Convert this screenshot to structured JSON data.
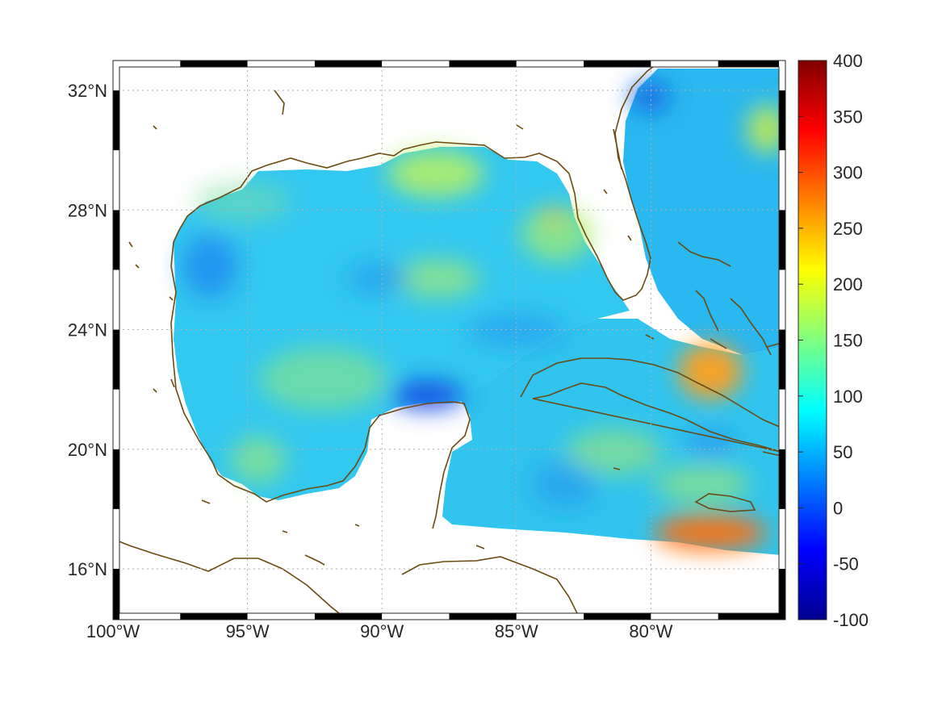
{
  "map": {
    "lon_range": [
      -100,
      -75
    ],
    "lat_range": [
      14.3,
      33
    ],
    "x_ticks": [
      {
        "lon": -100,
        "label": "100°W"
      },
      {
        "lon": -95,
        "label": "95°W"
      },
      {
        "lon": -90,
        "label": "90°W"
      },
      {
        "lon": -85,
        "label": "85°W"
      },
      {
        "lon": -80,
        "label": "80°W"
      }
    ],
    "y_ticks": [
      {
        "lat": 32,
        "label": "32°N"
      },
      {
        "lat": 28,
        "label": "28°N"
      },
      {
        "lat": 24,
        "label": "24°N"
      },
      {
        "lat": 20,
        "label": "20°N"
      },
      {
        "lat": 16,
        "label": "16°N"
      }
    ],
    "grid": "dotted",
    "frame": "black-white checkerboard",
    "coastline_color": "#6b4a12",
    "field_colormap": "jet"
  },
  "colorbar": {
    "range": [
      -100,
      400
    ],
    "ticks": [
      "400",
      "350",
      "300",
      "250",
      "200",
      "150",
      "100",
      "50",
      "0",
      "-50",
      "-100"
    ],
    "colors": [
      "#00008f",
      "#0000ff",
      "#00ffff",
      "#ffff00",
      "#ff0000",
      "#800000"
    ]
  }
}
